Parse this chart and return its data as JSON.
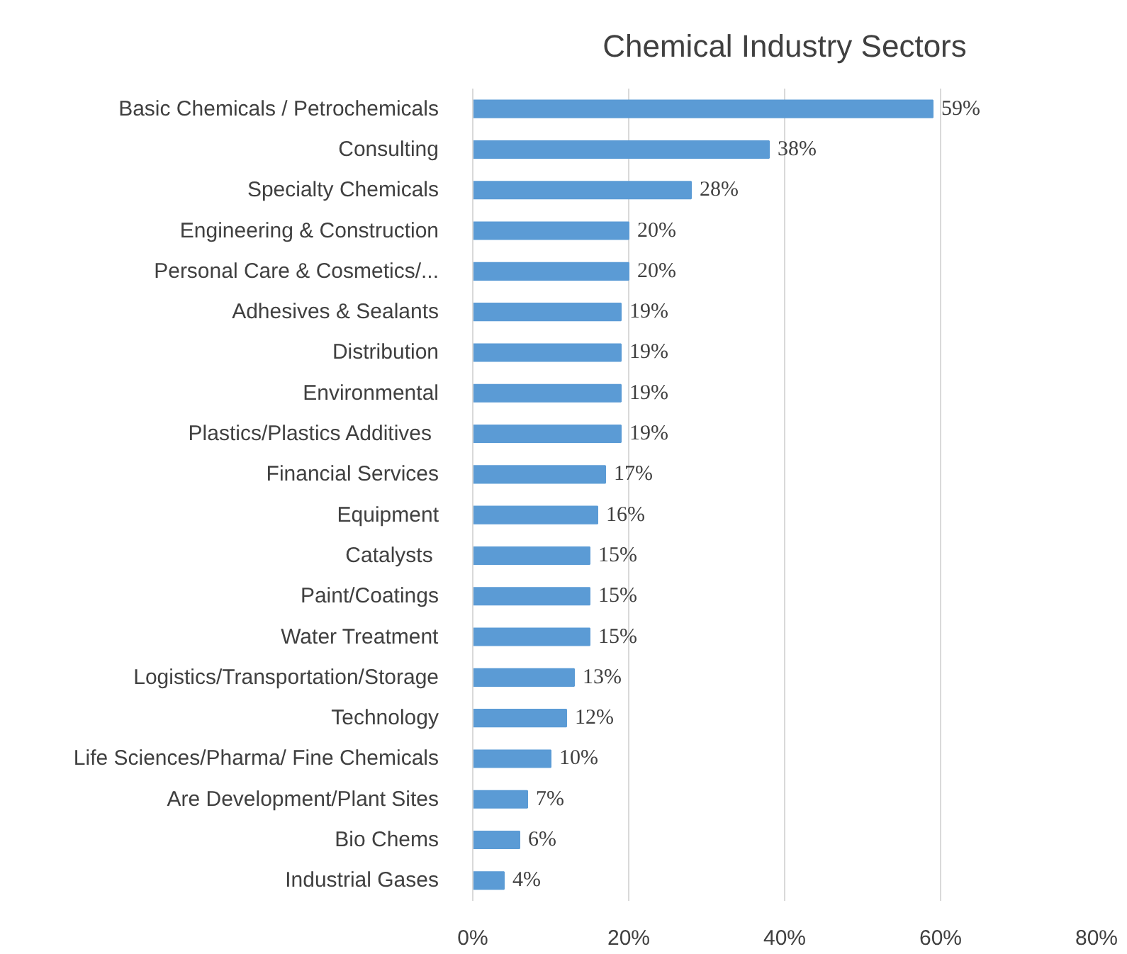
{
  "chart_data": {
    "type": "bar",
    "orientation": "horizontal",
    "title": "Chemical Industry Sectors",
    "categories": [
      "Basic Chemicals / Petrochemicals",
      "Consulting",
      "Specialty Chemicals",
      "Engineering & Construction",
      "Personal Care & Cosmetics/...",
      "Adhesives & Sealants",
      "Distribution",
      "Environmental",
      "Plastics/Plastics Additives ",
      "Financial Services",
      "Equipment",
      "Catalysts ",
      "Paint/Coatings",
      "Water Treatment",
      "Logistics/Transportation/Storage",
      "Technology",
      "Life Sciences/Pharma/ Fine Chemicals",
      "Are Development/Plant Sites",
      "Bio Chems",
      "Industrial Gases"
    ],
    "values": [
      59,
      38,
      28,
      20,
      20,
      19,
      19,
      19,
      19,
      17,
      16,
      15,
      15,
      15,
      13,
      12,
      10,
      7,
      6,
      4
    ],
    "value_labels": [
      "59%",
      "38%",
      "28%",
      "20%",
      "20%",
      "19%",
      "19%",
      "19%",
      "19%",
      "17%",
      "16%",
      "15%",
      "15%",
      "15%",
      "13%",
      "12%",
      "10%",
      "7%",
      "6%",
      "4%"
    ],
    "color": "#5b9bd5",
    "xlim": [
      0,
      80
    ],
    "xticks": [
      {
        "value": 0,
        "label": "0%"
      },
      {
        "value": 20,
        "label": "20%"
      },
      {
        "value": 40,
        "label": "40%"
      },
      {
        "value": 60,
        "label": "60%"
      },
      {
        "value": 80,
        "label": "80%"
      }
    ],
    "grid": "x"
  }
}
